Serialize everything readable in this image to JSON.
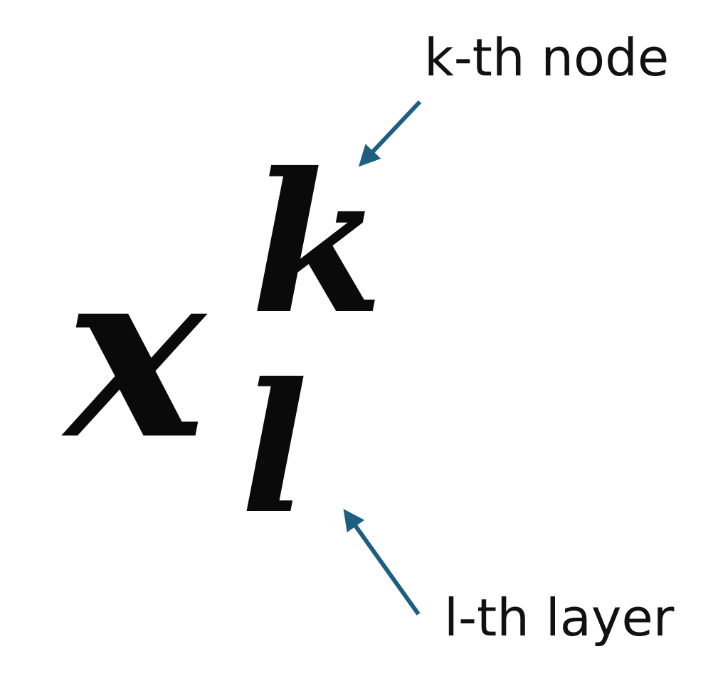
{
  "expression": {
    "base": "x",
    "superscript": "k",
    "subscript": "l"
  },
  "annotations": {
    "superscript_label": "k-th node",
    "subscript_label": "l-th layer"
  },
  "colors": {
    "arrow": "#1d5f80",
    "text": "#111111",
    "background": "#ffffff"
  }
}
